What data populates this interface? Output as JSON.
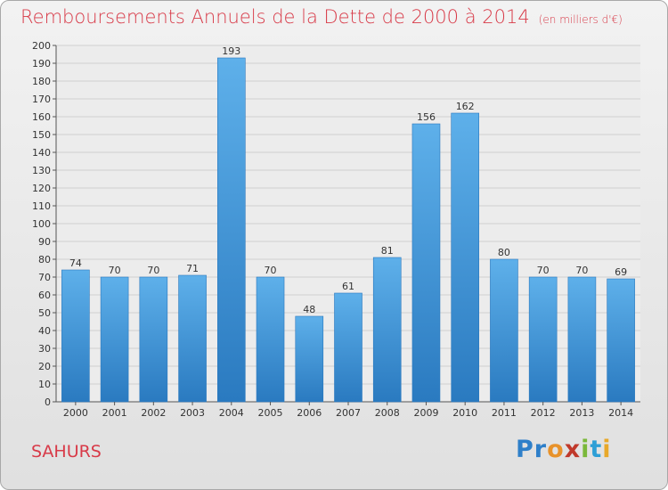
{
  "chart_data": {
    "type": "bar",
    "title": "Remboursements Annuels de la Dette de 2000 à 2014",
    "subtitle": "(en milliers d'€)",
    "categories": [
      "2000",
      "2001",
      "2002",
      "2003",
      "2004",
      "2005",
      "2006",
      "2007",
      "2008",
      "2009",
      "2010",
      "2011",
      "2012",
      "2013",
      "2014"
    ],
    "values": [
      74,
      70,
      70,
      71,
      193,
      70,
      48,
      61,
      81,
      156,
      162,
      80,
      70,
      70,
      69
    ],
    "ylim": [
      0,
      200
    ],
    "ytick_step": 10,
    "grid": true,
    "xlabel": "",
    "ylabel": "",
    "colors": {
      "bar_top": "#5eb0ea",
      "bar_bottom": "#2a7ac0",
      "title": "#d83a48"
    }
  },
  "footer": {
    "place": "SAHURS",
    "logo_letters": [
      {
        "ch": "P",
        "color": "#2e7fc9"
      },
      {
        "ch": "r",
        "color": "#2e7fc9"
      },
      {
        "ch": "o",
        "color": "#e8922a"
      },
      {
        "ch": "x",
        "color": "#c0392b"
      },
      {
        "ch": "i",
        "color": "#7ab83a"
      },
      {
        "ch": "t",
        "color": "#2e9fd6"
      },
      {
        "ch": "i",
        "color": "#e8a92a"
      }
    ]
  }
}
